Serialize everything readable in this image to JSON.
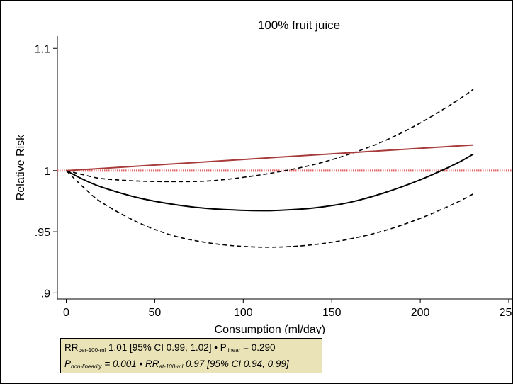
{
  "chart_data": {
    "type": "line",
    "title": "100% fruit juice",
    "xlabel": "Consumption (ml/day)",
    "ylabel": "Relative Risk",
    "xlim": [
      -5,
      252
    ],
    "ylim": [
      0.895,
      1.11
    ],
    "xticks": [
      0,
      50,
      100,
      150,
      200,
      250
    ],
    "xtick_labels": [
      "0",
      "50",
      "100",
      "150",
      "200",
      "250"
    ],
    "yticks": [
      0.9,
      0.95,
      1.0,
      1.1
    ],
    "ytick_labels": [
      ".9",
      ".95",
      "1",
      "1.1"
    ],
    "reference_line": {
      "y": 1.0,
      "color": "#e06060",
      "style": "dotted"
    },
    "grid": false,
    "series": [
      {
        "style": "solid",
        "color": "#000000",
        "x": [
          0,
          10,
          20,
          40,
          60,
          80,
          100,
          110,
          120,
          140,
          160,
          180,
          200,
          220,
          230
        ],
        "y": [
          1.0,
          0.9925,
          0.9865,
          0.978,
          0.9725,
          0.969,
          0.9675,
          0.9672,
          0.9675,
          0.9695,
          0.974,
          0.982,
          0.9925,
          1.0055,
          1.0135
        ]
      },
      {
        "style": "dashed",
        "color": "#000000",
        "x": [
          0,
          10,
          20,
          40,
          60,
          80,
          100,
          120,
          140,
          160,
          180,
          200,
          220,
          230
        ],
        "y": [
          1.0,
          0.9965,
          0.9935,
          0.9915,
          0.991,
          0.9915,
          0.9945,
          0.999,
          1.005,
          1.0135,
          1.0245,
          1.039,
          1.0565,
          1.0665
        ]
      },
      {
        "style": "dashed",
        "color": "#000000",
        "x": [
          0,
          10,
          20,
          40,
          60,
          80,
          100,
          120,
          140,
          160,
          180,
          200,
          220,
          230
        ],
        "y": [
          1.0,
          0.986,
          0.974,
          0.958,
          0.947,
          0.941,
          0.938,
          0.9375,
          0.9395,
          0.944,
          0.951,
          0.961,
          0.9735,
          0.981
        ]
      },
      {
        "style": "solid",
        "color": "#a93a3a",
        "x": [
          0,
          230
        ],
        "y": [
          1.0,
          1.021
        ]
      }
    ]
  },
  "stats": {
    "rr_per_label": "RR",
    "rr_per_sub": "per-100-ml",
    "rr_per_text": " 1.01 [95% CI 0.99, 1.02] • P",
    "p_linear_sub": "linear",
    "p_linear_text": " = 0.290",
    "p_nonlin_label": "P",
    "p_nonlin_sub": "non-linearity",
    "p_nonlin_text": " = 0.001 •  RR",
    "rr_at_sub": "at-100-ml",
    "rr_at_text": " 0.97 [95% CI 0.94, 0.99]"
  }
}
